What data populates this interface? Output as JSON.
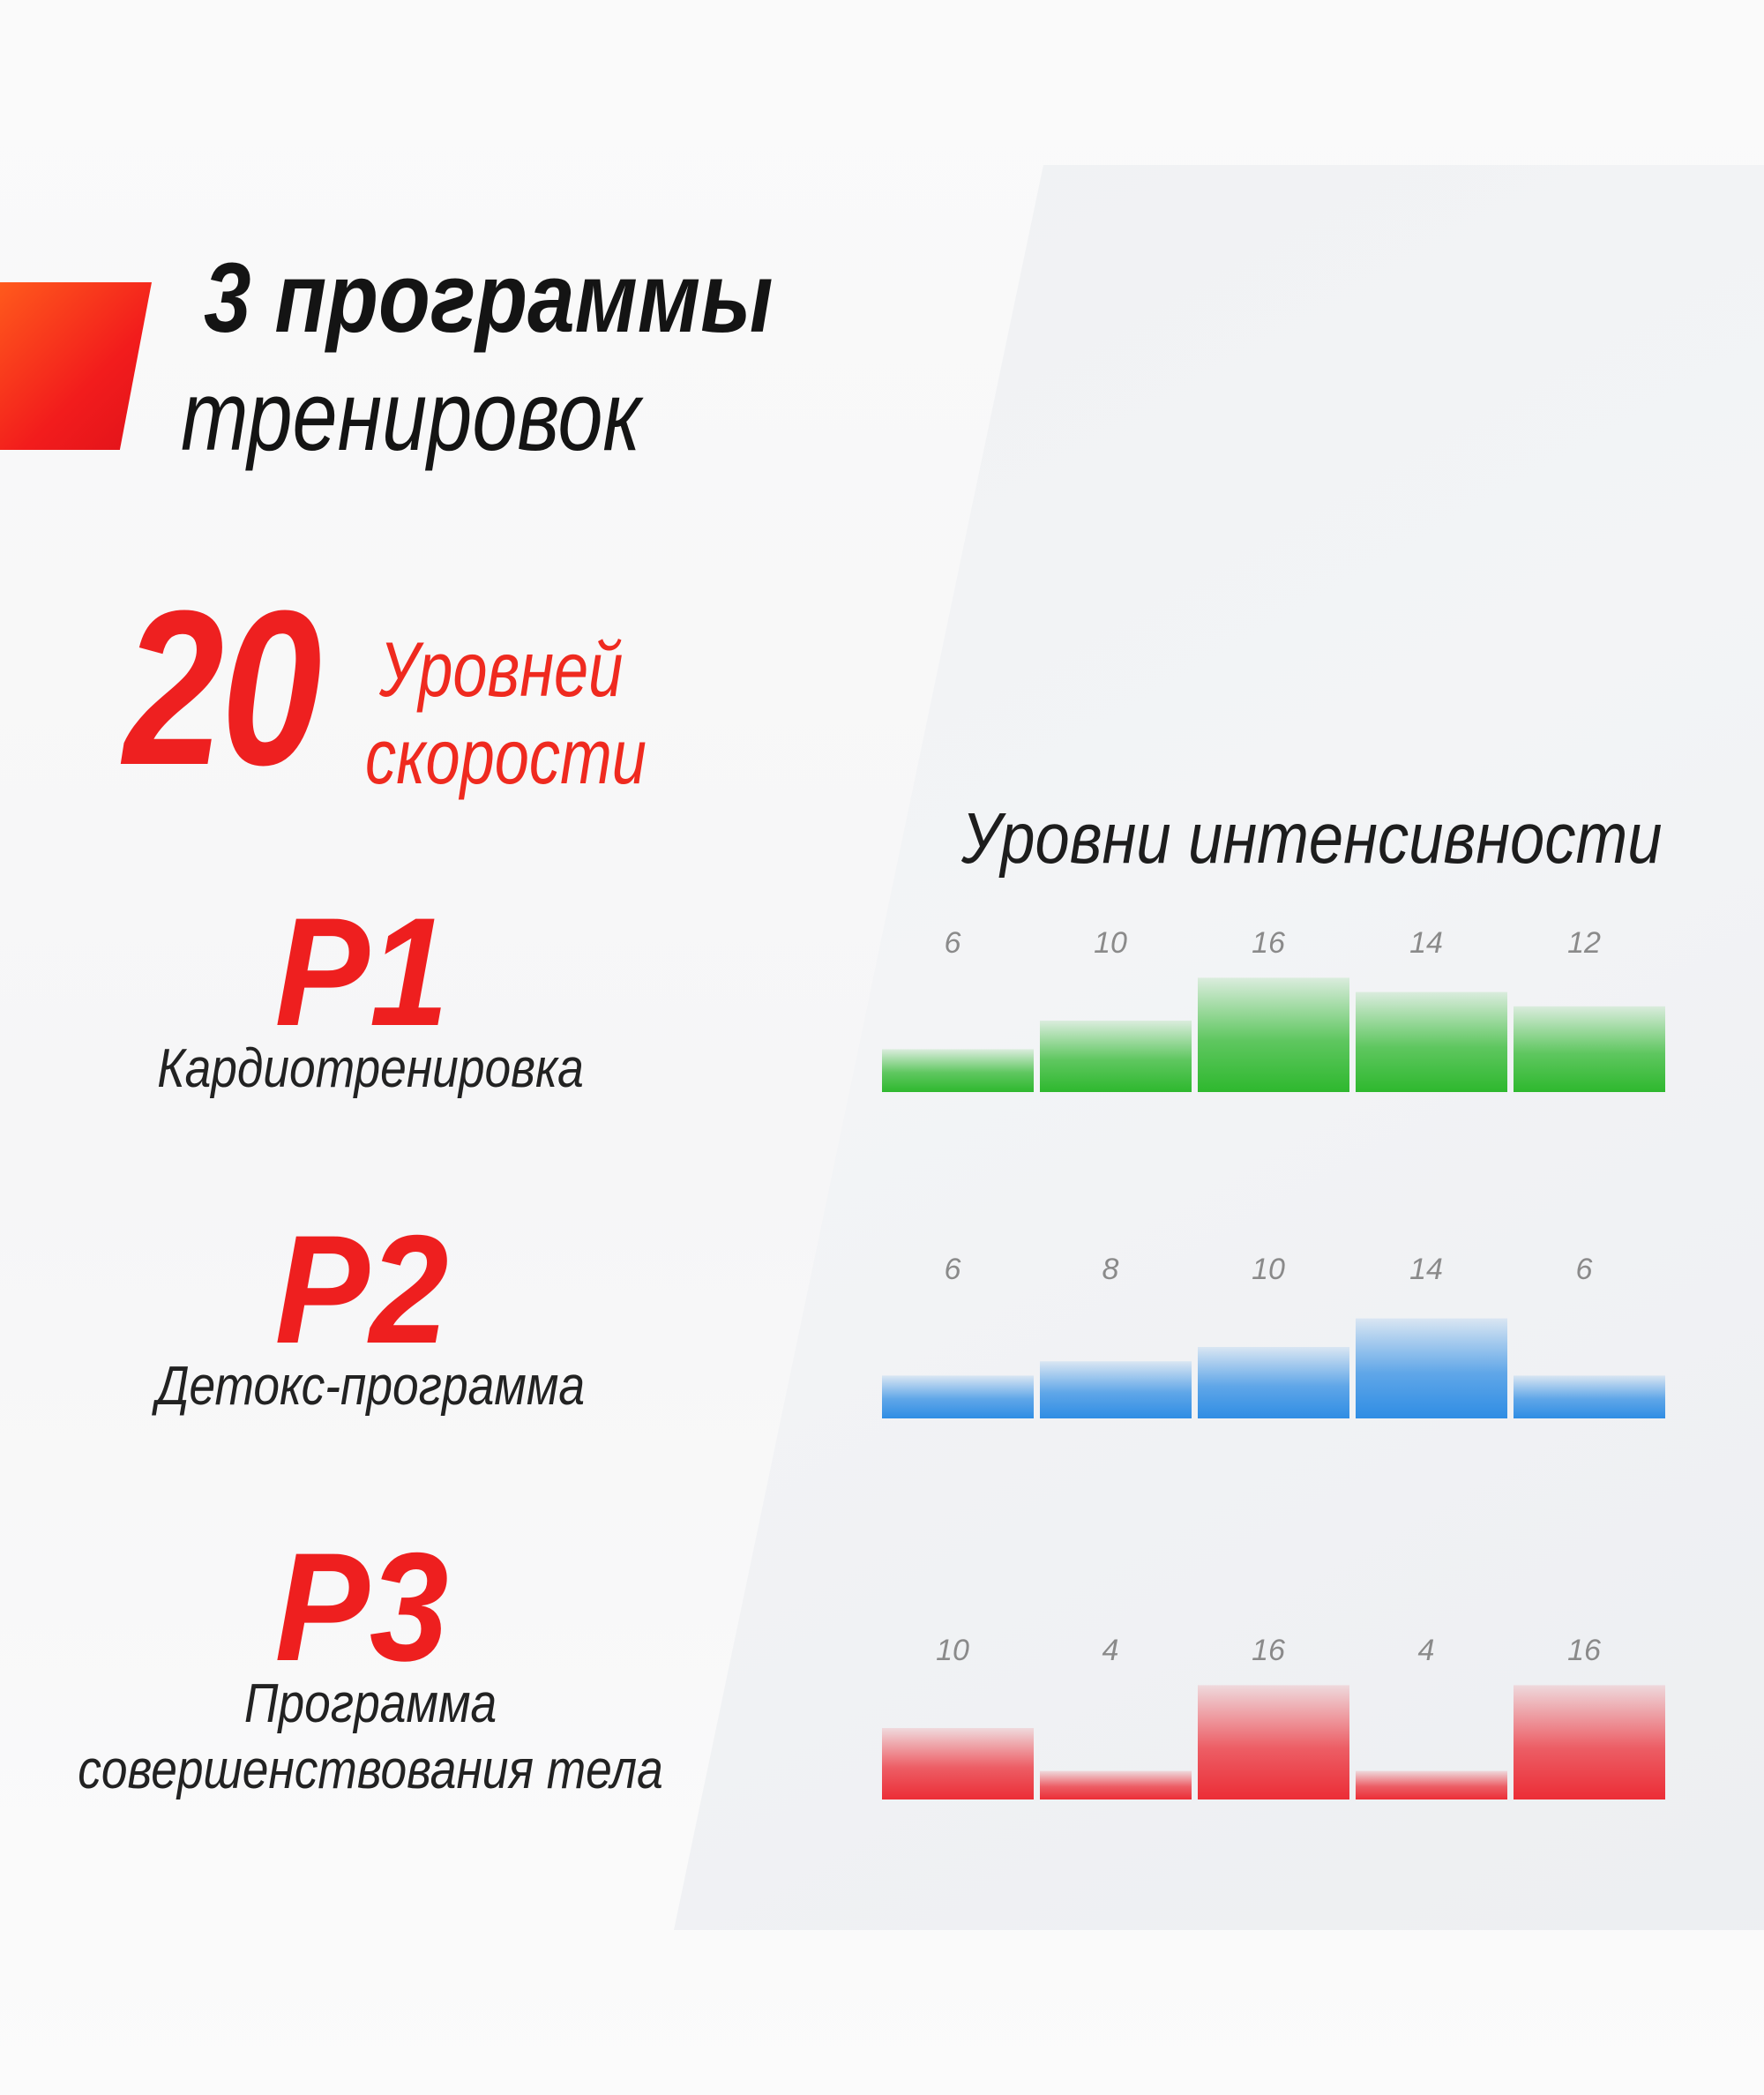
{
  "headline": {
    "line1": "3 программы",
    "line2": "тренировок"
  },
  "speed": {
    "number": "20",
    "label_line1": "Уровней",
    "label_line2": "скорости"
  },
  "programs": [
    {
      "code": "P1",
      "name": "Кардиотренировка",
      "name2": ""
    },
    {
      "code": "P2",
      "name": "Детокс-программа",
      "name2": ""
    },
    {
      "code": "P3",
      "name": "Программа",
      "name2": "совершенствования тела"
    }
  ],
  "colors": {
    "accent": "#ee1f1f",
    "p1": "#2eb82e",
    "p2": "#2f8de4",
    "p3": "#ec2d36"
  },
  "chart_data": {
    "type": "bar",
    "title": "Уровни интенсивности",
    "ylim": [
      0,
      16
    ],
    "grid": false,
    "legend": "none",
    "series": [
      {
        "values": [
          6,
          10,
          16,
          14,
          12
        ]
      },
      {
        "values": [
          6,
          8,
          10,
          14,
          6
        ]
      },
      {
        "values": [
          10,
          4,
          16,
          4,
          16
        ]
      }
    ]
  }
}
